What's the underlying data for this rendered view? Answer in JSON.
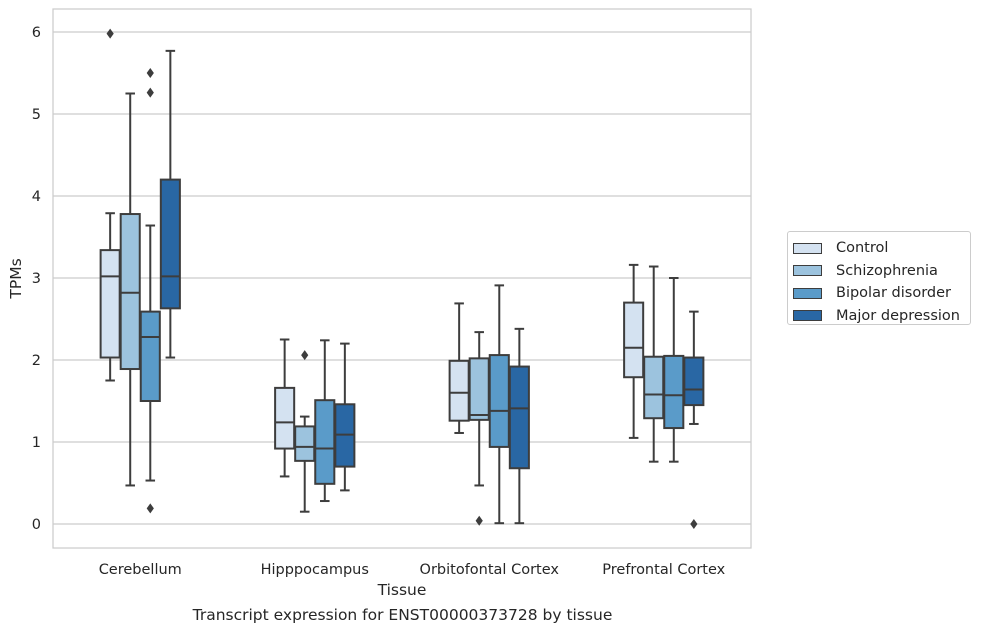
{
  "chart_data": {
    "type": "box",
    "caption": "Transcript expression for ENST00000373728 by tissue",
    "xlabel": "Tissue",
    "ylabel": "TPMs",
    "ylim": [
      -0.3,
      6.3
    ],
    "yticks": [
      "0",
      "1",
      "2",
      "3",
      "4",
      "5",
      "6"
    ],
    "categories": [
      "Cerebellum",
      "Hipppocampus",
      "Orbitofontal Cortex",
      "Prefrontal Cortex"
    ],
    "grid": true,
    "legend_position": "right",
    "series": [
      {
        "name": "Control",
        "color": "#d4e2f1",
        "boxes": [
          {
            "whisker_low": 1.75,
            "q1": 2.03,
            "median": 3.02,
            "q3": 3.34,
            "whisker_high": 3.79,
            "outliers": []
          },
          {
            "whisker_low": 0.58,
            "q1": 0.92,
            "median": 1.24,
            "q3": 1.66,
            "whisker_high": 2.25,
            "outliers": []
          },
          {
            "whisker_low": 1.11,
            "q1": 1.26,
            "median": 1.6,
            "q3": 1.99,
            "whisker_high": 2.69,
            "outliers": []
          },
          {
            "whisker_low": 1.05,
            "q1": 1.79,
            "median": 2.15,
            "q3": 2.7,
            "whisker_high": 3.16,
            "outliers": []
          }
        ]
      },
      {
        "name": "Schizophrenia",
        "color": "#9cc3de",
        "boxes": [
          {
            "whisker_low": 0.47,
            "q1": 1.89,
            "median": 2.82,
            "q3": 3.78,
            "whisker_high": 5.25,
            "outliers": []
          },
          {
            "whisker_low": 0.15,
            "q1": 0.77,
            "median": 0.94,
            "q3": 1.19,
            "whisker_high": 1.31,
            "outliers": [
              2.06
            ]
          },
          {
            "whisker_low": 0.47,
            "q1": 1.27,
            "median": 1.33,
            "q3": 2.02,
            "whisker_high": 2.34,
            "outliers": [
              0.04
            ]
          },
          {
            "whisker_low": 0.76,
            "q1": 1.29,
            "median": 1.58,
            "q3": 2.04,
            "whisker_high": 3.14,
            "outliers": []
          }
        ]
      },
      {
        "name": "Bipolar disorder",
        "color": "#5a9bc9",
        "boxes": [
          {
            "whisker_low": 0.53,
            "q1": 1.5,
            "median": 2.28,
            "q3": 2.59,
            "whisker_high": 3.64,
            "outliers": [
              5.5,
              5.26,
              0.19
            ]
          },
          {
            "whisker_low": 0.28,
            "q1": 0.49,
            "median": 0.92,
            "q3": 1.51,
            "whisker_high": 2.24,
            "outliers": []
          },
          {
            "whisker_low": 0.01,
            "q1": 0.94,
            "median": 1.38,
            "q3": 2.06,
            "whisker_high": 2.91,
            "outliers": []
          },
          {
            "whisker_low": 0.76,
            "q1": 1.17,
            "median": 1.57,
            "q3": 2.05,
            "whisker_high": 3.0,
            "outliers": []
          }
        ]
      },
      {
        "name": "Major depression",
        "color": "#2967a4",
        "boxes": [
          {
            "whisker_low": 2.03,
            "q1": 2.63,
            "median": 3.02,
            "q3": 4.2,
            "whisker_high": 5.77,
            "outliers": []
          },
          {
            "whisker_low": 0.41,
            "q1": 0.7,
            "median": 1.09,
            "q3": 1.46,
            "whisker_high": 2.2,
            "outliers": []
          },
          {
            "whisker_low": 0.01,
            "q1": 0.68,
            "median": 1.41,
            "q3": 1.92,
            "whisker_high": 2.38,
            "outliers": []
          },
          {
            "whisker_low": 1.22,
            "q1": 1.45,
            "median": 1.64,
            "q3": 2.03,
            "whisker_high": 2.59,
            "outliers": [
              0.0
            ]
          }
        ]
      }
    ],
    "extra_outliers": [
      {
        "category": "Cerebellum",
        "value": 5.98
      }
    ]
  }
}
